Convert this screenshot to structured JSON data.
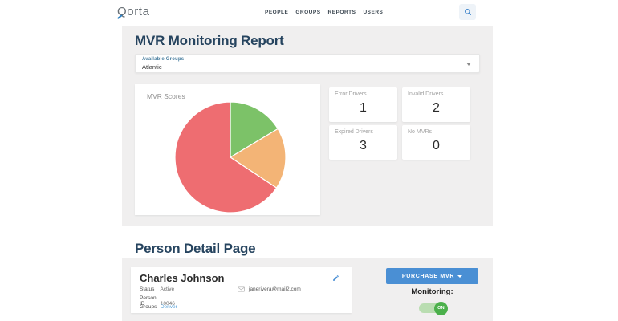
{
  "header": {
    "logo_text": "Qorta",
    "nav": {
      "items": [
        {
          "label": "PEOPLE"
        },
        {
          "label": "GROUPS"
        },
        {
          "label": "REPORTS"
        },
        {
          "label": "USERS"
        }
      ]
    }
  },
  "report": {
    "title": "MVR Monitoring Report",
    "group_select": {
      "label": "Available Groups",
      "value": "Atlantic"
    },
    "stats": [
      {
        "label": "Error Drivers",
        "value": "1"
      },
      {
        "label": "Invalid Drivers",
        "value": "2"
      },
      {
        "label": "Expired Drivers",
        "value": "3"
      },
      {
        "label": "No MVRs",
        "value": "0"
      }
    ]
  },
  "chart_data": {
    "type": "pie",
    "title": "MVR Scores",
    "legend": "none",
    "start_angle_deg": 0,
    "direction": "clockwise",
    "segments": [
      {
        "label": "green",
        "percent": 16.4,
        "color": "#7cc268"
      },
      {
        "label": "orange",
        "percent": 17.9,
        "color": "#f3b476"
      },
      {
        "label": "red",
        "percent": 65.7,
        "color": "#ee6d71"
      }
    ]
  },
  "person": {
    "section_title": "Person Detail Page",
    "name": "Charles Johnson",
    "fields": [
      {
        "label": "Status",
        "value": "Active"
      },
      {
        "label": "Person ID",
        "value": "10046"
      },
      {
        "label": "Groups",
        "value": "Denver"
      }
    ],
    "email": "janerivera@mail2.com",
    "purchase_button": "PURCHASE MVR",
    "monitoring_label": "Monitoring:",
    "toggle_state": "ON"
  },
  "colors": {
    "accent_blue": "#4a8fd4",
    "heading_navy": "#26445f",
    "panel_gray": "#f0efef",
    "toggle_green": "#4bb04b",
    "pie_green": "#7cc268",
    "pie_orange": "#f3b476",
    "pie_red": "#ee6d71"
  }
}
